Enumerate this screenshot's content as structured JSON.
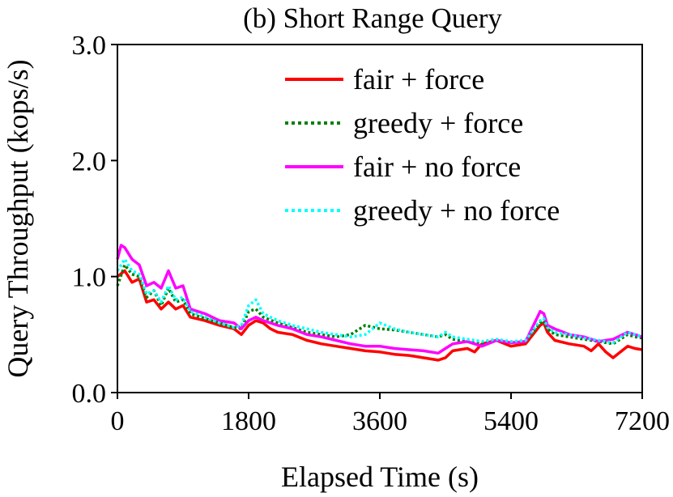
{
  "chart_data": {
    "type": "line",
    "title": "(b) Short Range Query",
    "xlabel": "Elapsed Time (s)",
    "ylabel": "Query Throughput (kops/s)",
    "xlim": [
      0,
      7200
    ],
    "ylim": [
      0.0,
      3.0
    ],
    "xticks": [
      0,
      1800,
      3600,
      5400,
      7200
    ],
    "xtick_labels": [
      "0",
      "1800",
      "3600",
      "5400",
      "7200"
    ],
    "yticks": [
      0.0,
      1.0,
      2.0,
      3.0
    ],
    "ytick_labels": [
      "0.0",
      "1.0",
      "2.0",
      "3.0"
    ],
    "legend_position": "top-right",
    "series": [
      {
        "name": "fair + force",
        "color": "#ff0000",
        "style": "solid",
        "x": [
          0,
          100,
          200,
          300,
          400,
          500,
          600,
          700,
          800,
          900,
          1000,
          1200,
          1400,
          1600,
          1700,
          1800,
          1900,
          2000,
          2100,
          2200,
          2400,
          2600,
          2800,
          3000,
          3200,
          3400,
          3600,
          3800,
          4000,
          4200,
          4400,
          4500,
          4600,
          4800,
          4900,
          5000,
          5200,
          5400,
          5600,
          5800,
          5850,
          5900,
          6000,
          6200,
          6400,
          6500,
          6600,
          6700,
          6800,
          7000,
          7100,
          7200
        ],
        "values": [
          1.0,
          1.05,
          0.95,
          0.98,
          0.78,
          0.8,
          0.72,
          0.78,
          0.72,
          0.75,
          0.65,
          0.62,
          0.58,
          0.55,
          0.5,
          0.58,
          0.62,
          0.6,
          0.55,
          0.52,
          0.5,
          0.45,
          0.42,
          0.4,
          0.38,
          0.36,
          0.35,
          0.33,
          0.32,
          0.3,
          0.28,
          0.3,
          0.36,
          0.38,
          0.35,
          0.42,
          0.45,
          0.4,
          0.42,
          0.58,
          0.6,
          0.52,
          0.45,
          0.42,
          0.4,
          0.36,
          0.42,
          0.35,
          0.3,
          0.4,
          0.38,
          0.37
        ]
      },
      {
        "name": "greedy + force",
        "color": "#007f00",
        "style": "dotted",
        "x": [
          0,
          100,
          200,
          300,
          400,
          500,
          600,
          700,
          800,
          900,
          1000,
          1200,
          1400,
          1600,
          1700,
          1800,
          1900,
          2000,
          2200,
          2400,
          2600,
          2800,
          3000,
          3200,
          3400,
          3600,
          3800,
          4000,
          4200,
          4400,
          4500,
          4600,
          4800,
          5000,
          5200,
          5400,
          5600,
          5800,
          5850,
          5900,
          6000,
          6200,
          6400,
          6600,
          6800,
          7000,
          7100,
          7200
        ],
        "values": [
          0.92,
          1.1,
          1.02,
          1.0,
          0.82,
          0.88,
          0.75,
          0.9,
          0.78,
          0.8,
          0.68,
          0.64,
          0.6,
          0.56,
          0.55,
          0.7,
          0.72,
          0.65,
          0.6,
          0.56,
          0.52,
          0.5,
          0.48,
          0.5,
          0.58,
          0.55,
          0.54,
          0.52,
          0.5,
          0.48,
          0.5,
          0.46,
          0.44,
          0.42,
          0.45,
          0.43,
          0.44,
          0.6,
          0.62,
          0.55,
          0.5,
          0.48,
          0.46,
          0.44,
          0.42,
          0.5,
          0.48,
          0.47
        ]
      },
      {
        "name": "fair + no force",
        "color": "#ff00ff",
        "style": "solid",
        "x": [
          0,
          50,
          100,
          200,
          300,
          400,
          500,
          600,
          700,
          800,
          900,
          1000,
          1200,
          1400,
          1600,
          1700,
          1800,
          1900,
          2000,
          2200,
          2400,
          2600,
          2800,
          3000,
          3200,
          3400,
          3600,
          3800,
          4000,
          4200,
          4400,
          4500,
          4600,
          4800,
          5000,
          5200,
          5400,
          5600,
          5800,
          5850,
          5900,
          6000,
          6200,
          6400,
          6600,
          6800,
          7000,
          7100,
          7200
        ],
        "values": [
          1.15,
          1.27,
          1.25,
          1.15,
          1.1,
          0.92,
          0.95,
          0.9,
          1.05,
          0.9,
          0.92,
          0.72,
          0.68,
          0.62,
          0.6,
          0.55,
          0.62,
          0.65,
          0.62,
          0.58,
          0.55,
          0.5,
          0.48,
          0.45,
          0.42,
          0.4,
          0.4,
          0.38,
          0.37,
          0.36,
          0.34,
          0.38,
          0.42,
          0.44,
          0.4,
          0.45,
          0.43,
          0.44,
          0.7,
          0.68,
          0.58,
          0.55,
          0.5,
          0.48,
          0.44,
          0.46,
          0.52,
          0.5,
          0.48
        ]
      },
      {
        "name": "greedy + no force",
        "color": "#00ffff",
        "style": "dotted",
        "x": [
          0,
          100,
          200,
          300,
          400,
          500,
          600,
          700,
          800,
          900,
          1000,
          1200,
          1400,
          1600,
          1700,
          1800,
          1900,
          2000,
          2200,
          2400,
          2600,
          2800,
          3000,
          3200,
          3400,
          3600,
          3800,
          4000,
          4200,
          4400,
          4500,
          4600,
          4800,
          5000,
          5200,
          5400,
          5600,
          5800,
          5850,
          5900,
          6000,
          6200,
          6400,
          6600,
          6800,
          7000,
          7100,
          7200
        ],
        "values": [
          1.05,
          1.15,
          1.05,
          1.02,
          0.85,
          0.88,
          0.78,
          0.92,
          0.8,
          0.82,
          0.7,
          0.65,
          0.6,
          0.56,
          0.58,
          0.75,
          0.8,
          0.68,
          0.62,
          0.58,
          0.55,
          0.52,
          0.5,
          0.48,
          0.5,
          0.6,
          0.55,
          0.52,
          0.5,
          0.48,
          0.52,
          0.48,
          0.46,
          0.44,
          0.46,
          0.44,
          0.45,
          0.62,
          0.64,
          0.56,
          0.52,
          0.5,
          0.47,
          0.45,
          0.43,
          0.52,
          0.5,
          0.48
        ]
      }
    ]
  }
}
